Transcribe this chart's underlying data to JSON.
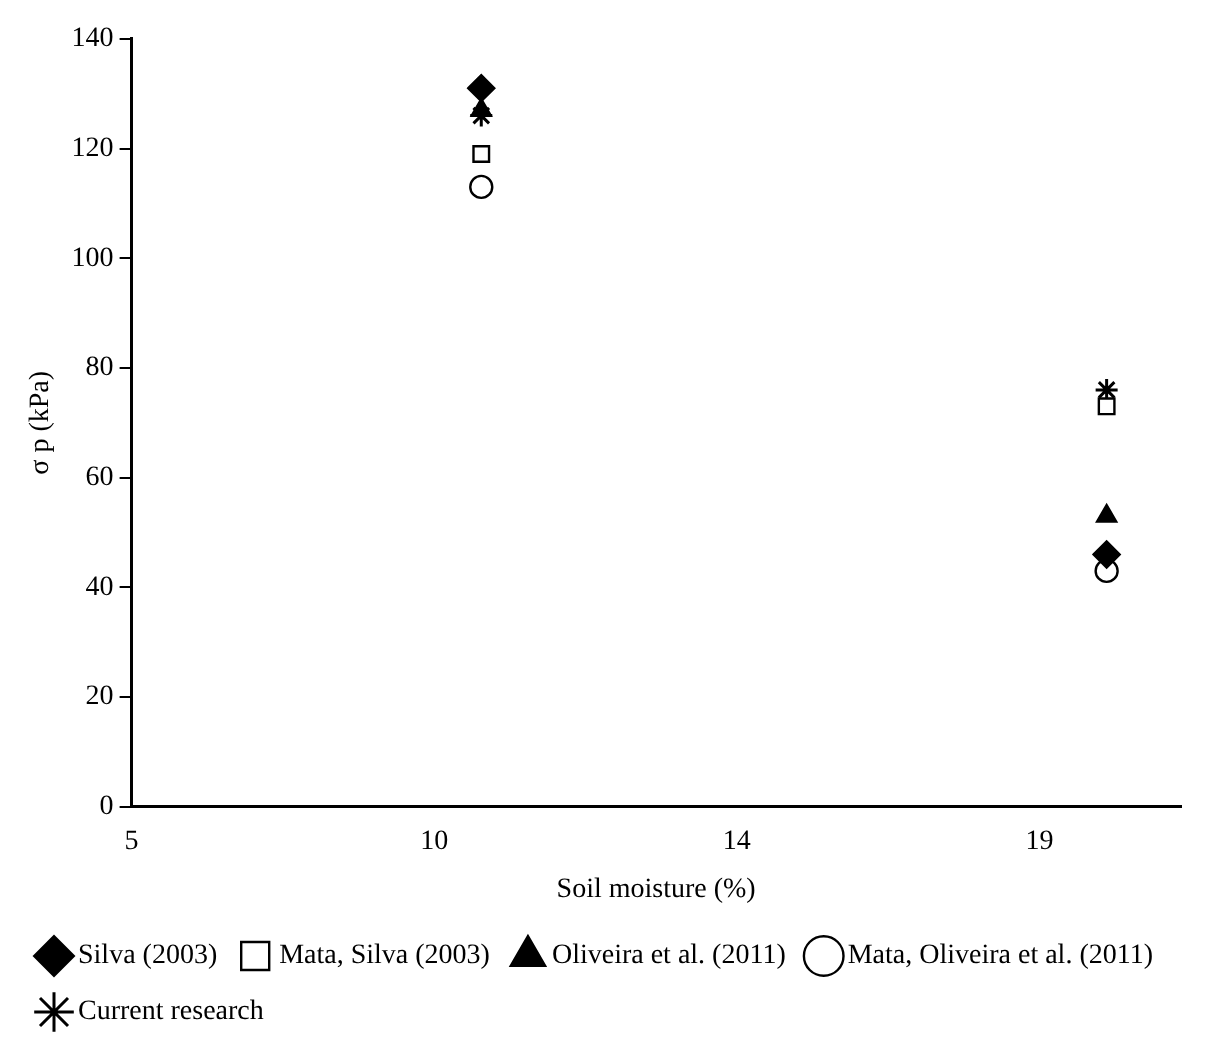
{
  "chart_data": {
    "type": "scatter",
    "xlabel": "Soil moisture (%)",
    "ylabel": "σ p (kPa)",
    "xlim": [
      5,
      20.6
    ],
    "xticks": [
      5,
      {
        "value": 9.5,
        "label": "10"
      },
      14,
      {
        "value": 18.5,
        "label": "19"
      }
    ],
    "ylim": [
      0,
      140
    ],
    "yticks": [
      0,
      20,
      40,
      60,
      80,
      100,
      120,
      140
    ],
    "grid": false,
    "legend": "bottom",
    "x": [
      10.2,
      19.5
    ],
    "series": [
      {
        "name": "Silva (2003)",
        "color": "#000000",
        "marker": "diamond",
        "values": [
          131,
          46
        ]
      },
      {
        "name": "Mata, Silva (2003)",
        "color": "#000000",
        "marker": "square",
        "values": [
          119,
          73
        ]
      },
      {
        "name": "Oliveira et al. (2011)",
        "color": "#000000",
        "marker": "triangle",
        "values": [
          127,
          53
        ]
      },
      {
        "name": "Mata, Oliveira et al. (2011)",
        "color": "#000000",
        "marker": "circle",
        "values": [
          113,
          43
        ]
      },
      {
        "name": "Current research",
        "color": "#000000",
        "marker": "cross",
        "values": [
          126,
          76
        ]
      }
    ]
  }
}
